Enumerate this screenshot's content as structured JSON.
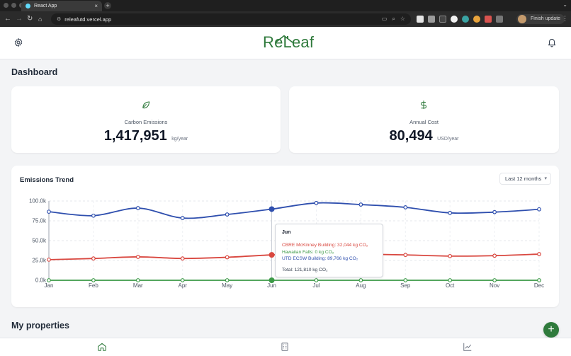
{
  "browser": {
    "tab_title": "React App",
    "tab_close": "×",
    "new_tab": "+",
    "url": "releafutd.vercel.app",
    "finish_update_label": "Finish update"
  },
  "header": {
    "logo_text": "ReLeaf"
  },
  "page_title": "Dashboard",
  "stats": [
    {
      "label": "Carbon Emissions",
      "value": "1,417,951",
      "unit": "kg/year",
      "icon": "leaf-icon"
    },
    {
      "label": "Annual Cost",
      "value": "80,494",
      "unit": "USD/year",
      "icon": "dollar-icon"
    }
  ],
  "chart_section": {
    "title": "Emissions Trend",
    "range_select": "Last 12 months"
  },
  "chart_data": {
    "type": "line",
    "x": [
      "Jan",
      "Feb",
      "Mar",
      "Apr",
      "May",
      "Jun",
      "Jul",
      "Aug",
      "Sep",
      "Oct",
      "Nov",
      "Dec"
    ],
    "y_ticks": [
      "0.0k",
      "25.0k",
      "50.0k",
      "75.0k",
      "100.0k"
    ],
    "ylim": [
      0,
      100000
    ],
    "grid": true,
    "highlight_index": 5,
    "series": [
      {
        "name": "UTD ECSW Building",
        "color": "#2f4fae",
        "values": [
          86500,
          81500,
          91000,
          78500,
          83000,
          89766,
          97500,
          95500,
          92000,
          85000,
          86000,
          89500
        ]
      },
      {
        "name": "CBRE McKinney Building",
        "color": "#d9473f",
        "values": [
          26000,
          27500,
          29500,
          27500,
          29000,
          32044,
          33500,
          33000,
          32000,
          30500,
          31000,
          33000
        ]
      },
      {
        "name": "Hawaiian Falls",
        "color": "#3c9a47",
        "values": [
          0,
          0,
          0,
          0,
          0,
          0,
          0,
          0,
          0,
          0,
          0,
          0
        ]
      }
    ]
  },
  "tooltip": {
    "title": "Jun",
    "lines": [
      {
        "text": "CBRE McKinney Building: 32,044 kg CO₂",
        "color": "#d9473f"
      },
      {
        "text": "Hawaiian Falls: 0 kg CO₂",
        "color": "#3c9a47"
      },
      {
        "text": "UTD ECSW Building: 89,766 kg CO₂",
        "color": "#2f4fae"
      }
    ],
    "total": "Total: 121,810 kg CO₂"
  },
  "properties": {
    "title": "My properties",
    "add_label": "+"
  },
  "bottom_nav": [
    {
      "icon": "home-icon",
      "active": true
    },
    {
      "icon": "building-icon",
      "active": false
    },
    {
      "icon": "chart-icon",
      "active": false
    }
  ]
}
